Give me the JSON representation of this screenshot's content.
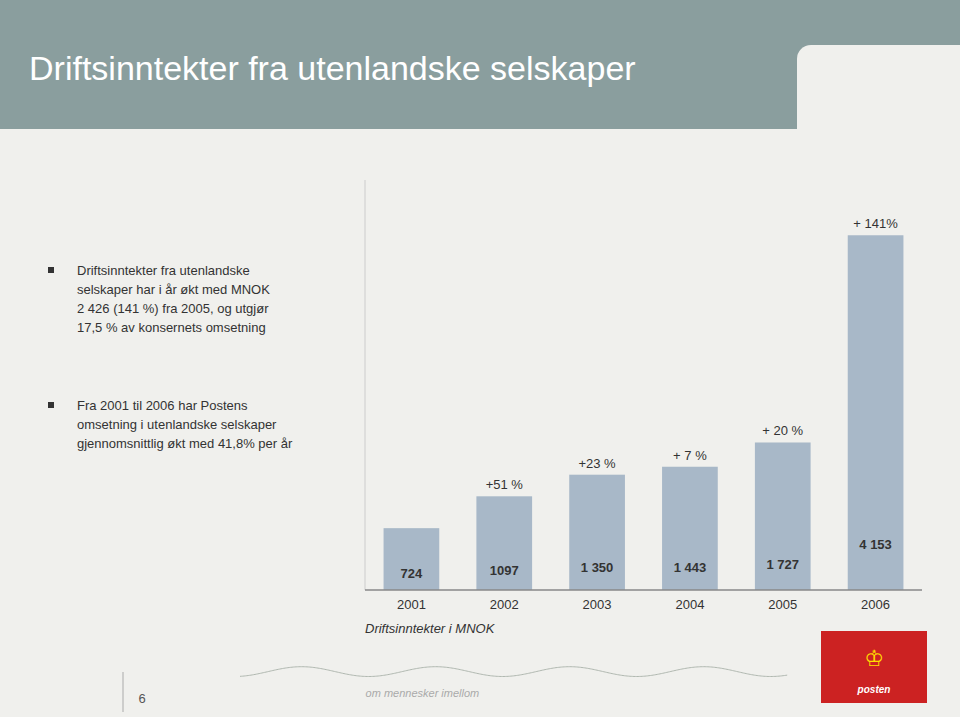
{
  "chart_data": {
    "type": "bar",
    "title": "Driftsinntekter fra utenlandske selskaper",
    "categories": [
      "2001",
      "2002",
      "2003",
      "2004",
      "2005",
      "2006"
    ],
    "values": [
      724,
      1097,
      1350,
      1443,
      1727,
      4153
    ],
    "value_labels": [
      "724",
      "1097",
      "1 350",
      "1 443",
      "1 727",
      "4 153"
    ],
    "data_labels": true,
    "color": "#a8b8c8",
    "x_label": "Driftsinntekter i MNOK",
    "ylim": [
      0,
      4800
    ],
    "yticks": [],
    "tick_labels": "x",
    "grid": false,
    "annotations": [
      {
        "category": "2002",
        "text": "+51 %"
      },
      {
        "category": "2003",
        "text": "+23 %"
      },
      {
        "category": "2004",
        "text": "+ 7 %"
      },
      {
        "category": "2005",
        "text": "+ 20 %"
      },
      {
        "category": "2006",
        "text": "+ 141%"
      }
    ]
  },
  "page": {
    "bullets": [
      [
        "Driftsinntekter fra utenlandske",
        "selskaper har i år økt med MNOK",
        "2 426 (141 %) fra 2005, og utgjør",
        "17,5 % av konsernets omsetning"
      ],
      [
        "Fra 2001 til 2006 har Postens",
        "omsetning i utenlandske selskaper",
        "gjennomsnittlig økt med 41,8% per år"
      ]
    ],
    "footer_text": "om mennesker imellom",
    "page_number": "6",
    "logo_symbol": "♔",
    "logo_text": "posten"
  }
}
